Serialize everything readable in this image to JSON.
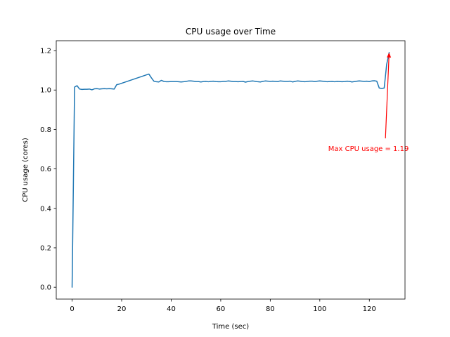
{
  "chart_data": {
    "type": "line",
    "title": "CPU usage over Time",
    "xlabel": "Time (sec)",
    "ylabel": "CPU usage (cores)",
    "xlim": [
      -6.4,
      134.4
    ],
    "ylim": [
      -0.06,
      1.25
    ],
    "xticks": [
      0,
      20,
      40,
      60,
      80,
      100,
      120
    ],
    "yticks": [
      0.0,
      0.2,
      0.4,
      0.6,
      0.8,
      1.0,
      1.2
    ],
    "xtick_labels": [
      "0",
      "20",
      "40",
      "60",
      "80",
      "100",
      "120"
    ],
    "ytick_labels": [
      "0.0",
      "0.2",
      "0.4",
      "0.6",
      "0.8",
      "1.0",
      "1.2"
    ],
    "grid": false,
    "line_color": "#1f77b4",
    "series": [
      {
        "x": [
          0,
          1,
          2,
          3,
          4,
          5,
          6,
          7,
          8,
          9,
          10,
          11,
          12,
          13,
          14,
          15,
          16,
          17,
          18,
          19,
          31,
          32,
          33,
          34,
          35,
          36,
          37,
          38,
          39,
          40,
          41,
          42,
          43,
          44,
          45,
          46,
          47,
          48,
          49,
          50,
          51,
          52,
          53,
          54,
          55,
          56,
          57,
          58,
          59,
          60,
          61,
          62,
          63,
          64,
          65,
          66,
          67,
          68,
          69,
          70,
          71,
          72,
          73,
          74,
          75,
          76,
          77,
          78,
          79,
          80,
          81,
          82,
          83,
          84,
          85,
          86,
          87,
          88,
          89,
          90,
          91,
          92,
          93,
          94,
          95,
          96,
          97,
          98,
          99,
          100,
          101,
          102,
          103,
          104,
          105,
          106,
          107,
          108,
          109,
          110,
          111,
          112,
          113,
          114,
          115,
          116,
          117,
          118,
          119,
          120,
          121,
          122,
          123,
          124,
          125,
          126,
          127,
          128
        ],
        "y": [
          0.0,
          1.015,
          1.022,
          1.005,
          1.003,
          1.004,
          1.004,
          1.005,
          1.001,
          1.006,
          1.007,
          1.005,
          1.006,
          1.007,
          1.006,
          1.007,
          1.006,
          1.005,
          1.027,
          1.03,
          1.081,
          1.062,
          1.045,
          1.042,
          1.041,
          1.049,
          1.044,
          1.042,
          1.042,
          1.043,
          1.043,
          1.043,
          1.042,
          1.041,
          1.042,
          1.044,
          1.046,
          1.046,
          1.045,
          1.043,
          1.043,
          1.041,
          1.043,
          1.044,
          1.042,
          1.044,
          1.045,
          1.043,
          1.042,
          1.042,
          1.044,
          1.044,
          1.046,
          1.045,
          1.043,
          1.043,
          1.042,
          1.043,
          1.044,
          1.04,
          1.043,
          1.045,
          1.046,
          1.044,
          1.042,
          1.041,
          1.044,
          1.046,
          1.045,
          1.044,
          1.045,
          1.044,
          1.043,
          1.046,
          1.045,
          1.044,
          1.044,
          1.045,
          1.041,
          1.044,
          1.046,
          1.045,
          1.043,
          1.042,
          1.044,
          1.045,
          1.045,
          1.043,
          1.045,
          1.046,
          1.045,
          1.044,
          1.042,
          1.043,
          1.044,
          1.042,
          1.044,
          1.043,
          1.042,
          1.043,
          1.045,
          1.044,
          1.041,
          1.043,
          1.045,
          1.046,
          1.045,
          1.044,
          1.045,
          1.043,
          1.046,
          1.047,
          1.045,
          1.01,
          1.008,
          1.01,
          1.13,
          1.19
        ]
      }
    ],
    "annotation": {
      "text": "Max CPU usage = 1.19",
      "text_x": 103.4,
      "text_y": 0.692,
      "point_x": 128,
      "point_y": 1.19,
      "arrow_tail_x": 126.5,
      "arrow_tail_y": 0.755,
      "color": "#ff0000"
    }
  }
}
